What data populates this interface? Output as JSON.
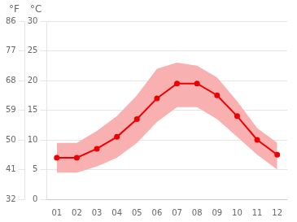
{
  "chart_data": {
    "type": "line",
    "categories": [
      "01",
      "02",
      "03",
      "04",
      "05",
      "06",
      "07",
      "08",
      "09",
      "10",
      "11",
      "12"
    ],
    "series": [
      {
        "type": "line",
        "color": "#ee0000",
        "marker": "o",
        "line_style": "solid",
        "values": [
          7.0,
          7.0,
          8.5,
          10.5,
          13.5,
          17.0,
          19.5,
          19.5,
          17.5,
          14.0,
          10.0,
          7.5
        ]
      },
      {
        "type": "area",
        "color": "#f8b0b0",
        "low": [
          4.5,
          4.5,
          5.5,
          7.0,
          9.5,
          13.0,
          15.5,
          15.5,
          13.5,
          10.5,
          7.5,
          5.0
        ],
        "high": [
          9.5,
          9.5,
          11.5,
          14.0,
          17.5,
          22.0,
          23.0,
          22.5,
          20.5,
          16.5,
          12.0,
          9.5
        ]
      }
    ],
    "ylim": [
      0,
      30
    ],
    "yticks": [
      0,
      5,
      10,
      15,
      20,
      25,
      30
    ],
    "y2lim": [
      32,
      86
    ],
    "y2ticks": [
      32,
      41,
      50,
      59,
      68,
      77,
      86
    ],
    "ylabel": "°C",
    "y2label": "°F",
    "grid": true
  }
}
